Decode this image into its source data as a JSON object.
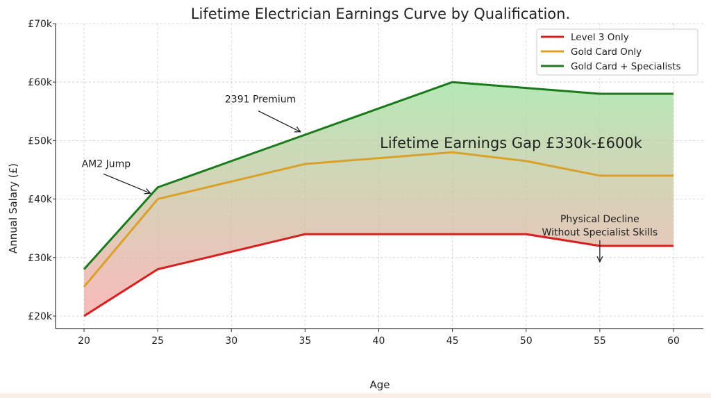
{
  "chart_data": {
    "type": "line",
    "title": "Lifetime Electrician Earnings Curve by Qualification.",
    "xlabel": "Age",
    "ylabel": "Annual Salary (£)",
    "xlim": [
      18,
      62
    ],
    "ylim": [
      18,
      70
    ],
    "x_ticks": [
      20,
      25,
      30,
      35,
      40,
      45,
      50,
      55,
      60
    ],
    "x_tick_labels": [
      "20",
      "25",
      "30",
      "35",
      "40",
      "45",
      "50",
      "55",
      "60"
    ],
    "y_ticks": [
      20,
      30,
      40,
      50,
      60,
      70
    ],
    "y_tick_labels": [
      "£20k",
      "£30k",
      "£40k",
      "£50k",
      "£60k",
      "£70k"
    ],
    "grid": true,
    "legend_position": "top-right",
    "x": [
      20,
      25,
      35,
      45,
      50,
      55,
      60
    ],
    "series": [
      {
        "name": "Level 3 Only",
        "color": "#d62020",
        "values": [
          20,
          28,
          34,
          34,
          34,
          32,
          32
        ]
      },
      {
        "name": "Gold Card Only",
        "color": "#d9a02a",
        "values": [
          25,
          40,
          46,
          48,
          46.5,
          44,
          44
        ]
      },
      {
        "name": "Gold Card + Specialists",
        "color": "#1a7a1a",
        "values": [
          28,
          42,
          51,
          60,
          59,
          58,
          58
        ]
      }
    ],
    "fill_between": {
      "lower": "Level 3 Only",
      "upper": "Gold Card + Specialists",
      "top_color": "#9ee09e",
      "bottom_color": "#f7a3a3"
    },
    "annotations": [
      {
        "text": "AM2 Jump",
        "x": 21.5,
        "y": 45.5,
        "arrow_to": [
          24.5,
          41
        ]
      },
      {
        "text": "2391 Premium",
        "x": 31.5,
        "y": 56.5,
        "arrow_to": [
          34.5,
          51.5
        ]
      },
      {
        "text": "Lifetime Earnings Gap £330k-£600k",
        "x": 49,
        "y": 52
      },
      {
        "text": "Physical Decline",
        "x": 55,
        "y": 38.5
      },
      {
        "text": "Without Specialist Skills",
        "x": 55,
        "y": 36.5,
        "arrow_to": [
          55,
          32.5
        ]
      }
    ]
  }
}
